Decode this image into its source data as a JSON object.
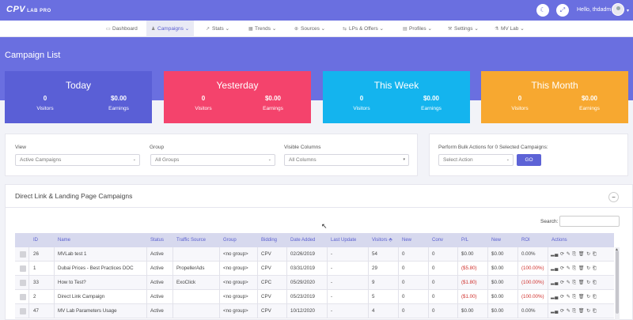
{
  "app": {
    "logo_main": "CPV",
    "logo_sub": "LAB PRO",
    "greeting": "Hello, thdadm"
  },
  "topbar_icons": {
    "theme": "moon-icon",
    "expand": "expand-icon"
  },
  "nav": [
    {
      "label": "Dashboard",
      "icon": "dashboard-icon"
    },
    {
      "label": "Campaigns",
      "icon": "user-icon",
      "caret": "⌄"
    },
    {
      "label": "Stats",
      "icon": "chart-icon",
      "caret": "⌄"
    },
    {
      "label": "Trends",
      "icon": "calendar-icon",
      "caret": "⌄"
    },
    {
      "label": "Sources",
      "icon": "globe-icon",
      "caret": "⌄"
    },
    {
      "label": "LPs & Offers",
      "icon": "signpost-icon",
      "caret": "⌄"
    },
    {
      "label": "Profiles",
      "icon": "document-icon",
      "caret": "⌄"
    },
    {
      "label": "Settings",
      "icon": "wrench-icon",
      "caret": "⌄"
    },
    {
      "label": "MV Lab",
      "icon": "flask-icon",
      "caret": "⌄"
    }
  ],
  "page_title": "Campaign List",
  "cards": [
    {
      "title": "Today",
      "visitors": "0",
      "visitors_label": "Visitors",
      "earnings": "$0.00",
      "earnings_label": "Earnings",
      "color": "#5a5fd6"
    },
    {
      "title": "Yesterday",
      "visitors": "0",
      "visitors_label": "Visitors",
      "earnings": "$0.00",
      "earnings_label": "Earnings",
      "color": "#f4436c"
    },
    {
      "title": "This Week",
      "visitors": "0",
      "visitors_label": "Visitors",
      "earnings": "$0.00",
      "earnings_label": "Earnings",
      "color": "#14b4ee"
    },
    {
      "title": "This Month",
      "visitors": "0",
      "visitors_label": "Visitors",
      "earnings": "$0.00",
      "earnings_label": "Earnings",
      "color": "#f7a830"
    }
  ],
  "filters": {
    "view_label": "View",
    "view_value": "Active Campaigns",
    "group_label": "Group",
    "group_value": "All Groups",
    "columns_label": "Visible Columns",
    "columns_value": "All Columns"
  },
  "bulk": {
    "label": "Perform Bulk Actions for 0 Selected Campaigns:",
    "select_value": "Select Action",
    "go_label": "GO"
  },
  "section_title": "Direct Link & Landing Page Campaigns",
  "collapse_symbol": "−",
  "search_label": "Search:",
  "table": {
    "headers": [
      "ID",
      "Name",
      "Status",
      "Traffic Source",
      "Group",
      "Bidding",
      "Date Added",
      "Last Update",
      "Visitors",
      "New",
      "Conv",
      "P/L",
      "New",
      "ROI",
      "Actions"
    ],
    "sort_marker": "⬘",
    "rows": [
      {
        "id": "26",
        "name": "MVLab test 1",
        "status": "Active",
        "source": "",
        "group": "<no group>",
        "bidding": "CPV",
        "date_added": "02/26/2019",
        "last_update": "-",
        "visitors": "54",
        "new": "0",
        "conv": "0",
        "pl": "$0.00",
        "new2": "$0.00",
        "roi": "0.00%",
        "neg": false
      },
      {
        "id": "1",
        "name": "Dubai Prices - Best Practices DOC",
        "status": "Active",
        "source": "PropellerAds",
        "group": "<no group>",
        "bidding": "CPV",
        "date_added": "03/31/2019",
        "last_update": "-",
        "visitors": "29",
        "new": "0",
        "conv": "0",
        "pl": "($5.80)",
        "new2": "$0.00",
        "roi": "(100.00%)",
        "neg": true
      },
      {
        "id": "33",
        "name": "How to Test?",
        "status": "Active",
        "source": "ExoClick",
        "group": "<no group>",
        "bidding": "CPC",
        "date_added": "05/29/2020",
        "last_update": "-",
        "visitors": "9",
        "new": "0",
        "conv": "0",
        "pl": "($1.80)",
        "new2": "$0.00",
        "roi": "(100.00%)",
        "neg": true
      },
      {
        "id": "2",
        "name": "Direct Link Campaign",
        "status": "Active",
        "source": "",
        "group": "<no group>",
        "bidding": "CPV",
        "date_added": "05/23/2019",
        "last_update": "-",
        "visitors": "5",
        "new": "0",
        "conv": "0",
        "pl": "($1.00)",
        "new2": "$0.00",
        "roi": "(100.00%)",
        "neg": true
      },
      {
        "id": "47",
        "name": "MV Lab Parameters Usage",
        "status": "Active",
        "source": "",
        "group": "<no group>",
        "bidding": "CPV",
        "date_added": "10/12/2020",
        "last_update": "-",
        "visitors": "4",
        "new": "0",
        "conv": "0",
        "pl": "$0.00",
        "new2": "$0.00",
        "roi": "0.00%",
        "neg": false
      }
    ],
    "row_actions": "▂▄ ⟳ ✎ ⎘ 🗑 ↻ ⎗"
  }
}
